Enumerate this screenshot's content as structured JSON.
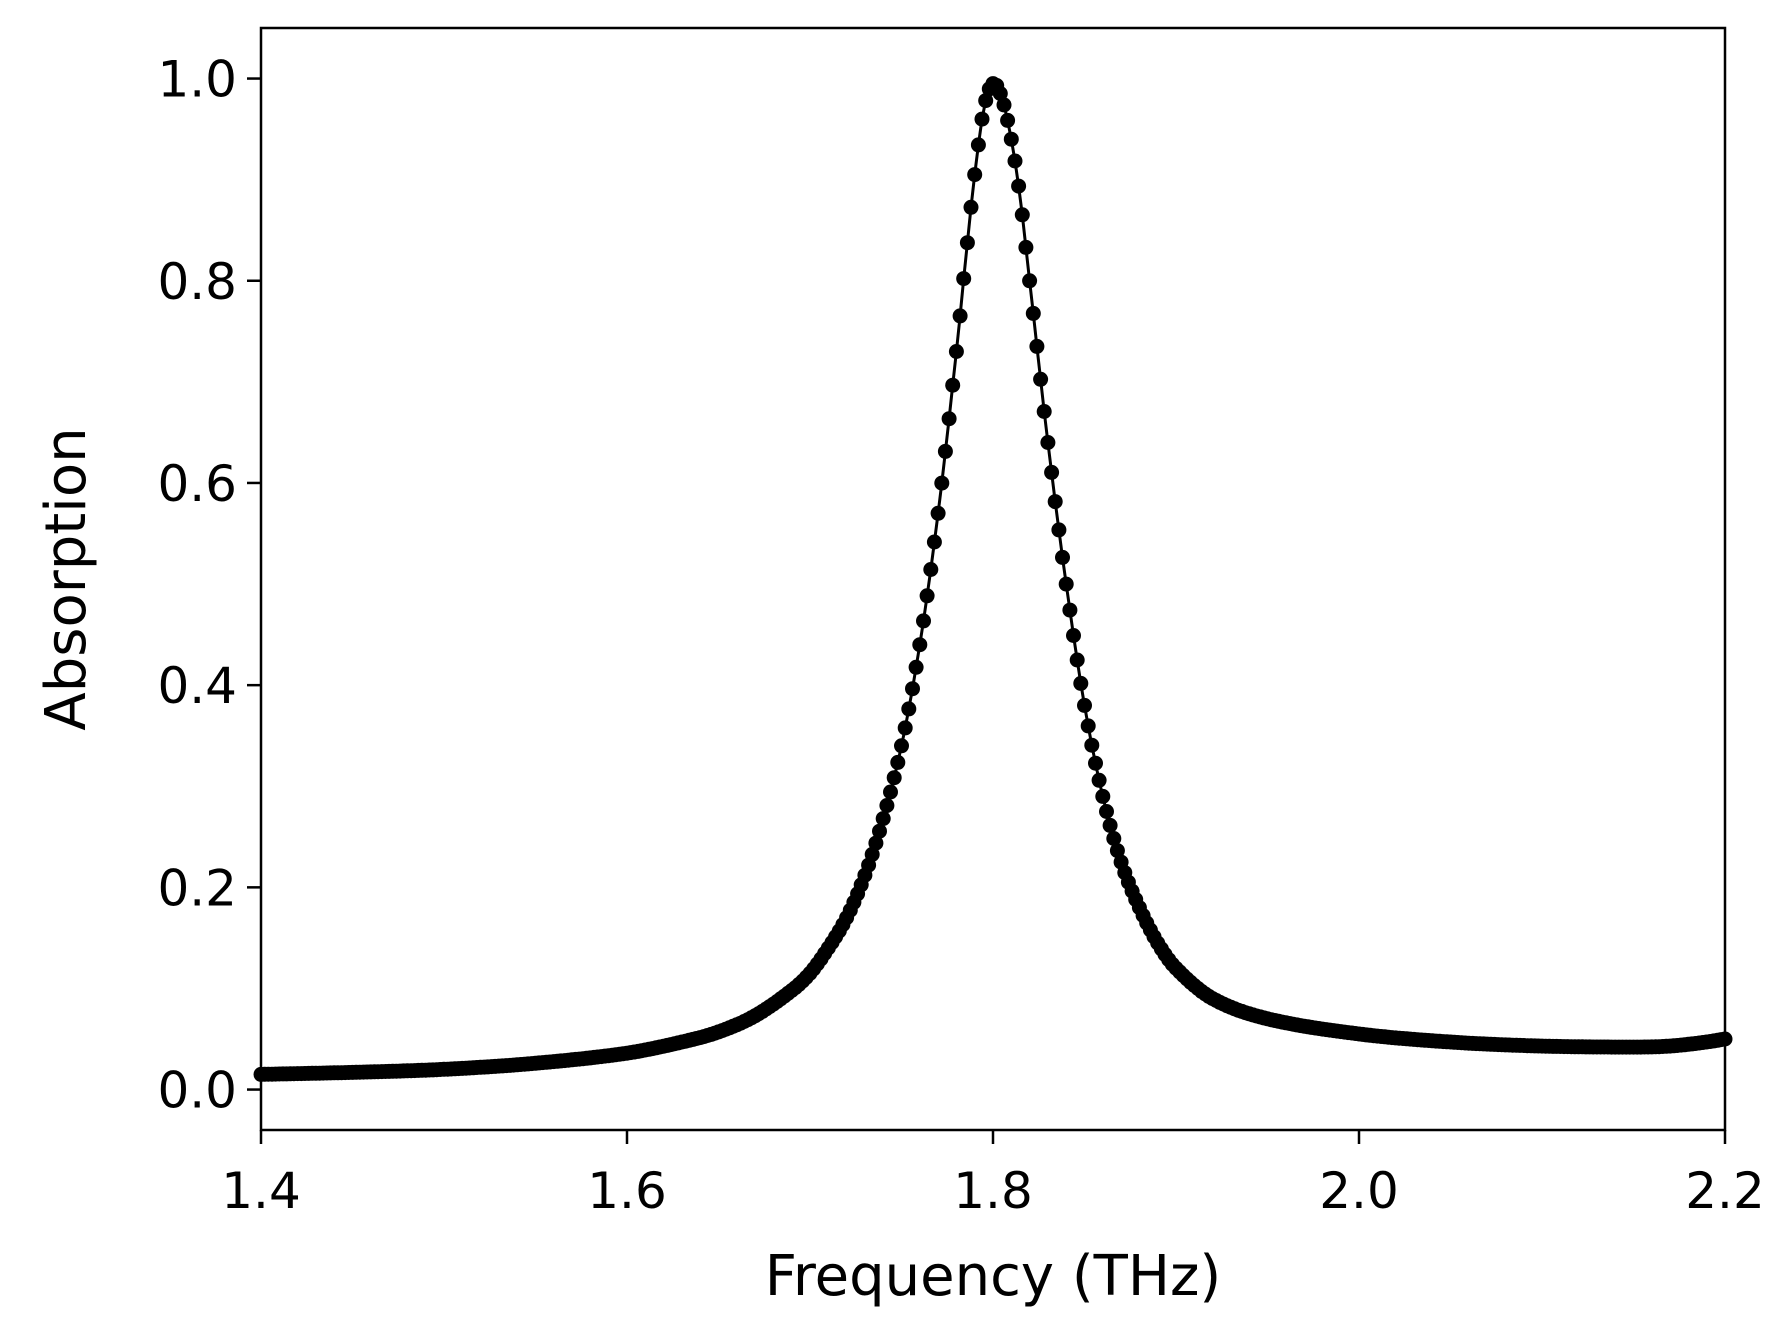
{
  "chart_data": {
    "type": "scatter",
    "title": "",
    "xlabel": "Frequency (THz)",
    "ylabel": "Absorption",
    "xlim": [
      1.4,
      2.2
    ],
    "ylim": [
      -0.04,
      1.05
    ],
    "xticks": [
      1.4,
      1.6,
      1.8,
      2.0,
      2.2
    ],
    "xtick_labels": [
      "1.4",
      "1.6",
      "1.8",
      "2.0",
      "2.2"
    ],
    "yticks": [
      0.0,
      0.2,
      0.4,
      0.6,
      0.8,
      1.0
    ],
    "ytick_labels": [
      "0.0",
      "0.2",
      "0.4",
      "0.6",
      "0.8",
      "1.0"
    ],
    "grid": false,
    "legend": "none",
    "color": "#000000",
    "marker": "filled-circle",
    "connected_by_line": true,
    "series": [
      {
        "points": [
          [
            1.4,
            0.015
          ],
          [
            1.45,
            0.017
          ],
          [
            1.5,
            0.02
          ],
          [
            1.55,
            0.026
          ],
          [
            1.6,
            0.036
          ],
          [
            1.63,
            0.047
          ],
          [
            1.65,
            0.057
          ],
          [
            1.67,
            0.073
          ],
          [
            1.69,
            0.098
          ],
          [
            1.7,
            0.115
          ],
          [
            1.71,
            0.14
          ],
          [
            1.72,
            0.17
          ],
          [
            1.73,
            0.212
          ],
          [
            1.74,
            0.268
          ],
          [
            1.75,
            0.34
          ],
          [
            1.76,
            0.44
          ],
          [
            1.77,
            0.57
          ],
          [
            1.78,
            0.73
          ],
          [
            1.785,
            0.82
          ],
          [
            1.79,
            0.905
          ],
          [
            1.795,
            0.97
          ],
          [
            1.8,
            0.995
          ],
          [
            1.805,
            0.98
          ],
          [
            1.81,
            0.94
          ],
          [
            1.815,
            0.88
          ],
          [
            1.82,
            0.8
          ],
          [
            1.83,
            0.64
          ],
          [
            1.84,
            0.5
          ],
          [
            1.85,
            0.38
          ],
          [
            1.86,
            0.29
          ],
          [
            1.87,
            0.225
          ],
          [
            1.88,
            0.18
          ],
          [
            1.89,
            0.145
          ],
          [
            1.9,
            0.12
          ],
          [
            1.92,
            0.09
          ],
          [
            1.95,
            0.07
          ],
          [
            2.0,
            0.055
          ],
          [
            2.05,
            0.047
          ],
          [
            2.1,
            0.043
          ],
          [
            2.15,
            0.042
          ],
          [
            2.17,
            0.043
          ],
          [
            2.19,
            0.047
          ],
          [
            2.2,
            0.05
          ]
        ]
      }
    ]
  }
}
